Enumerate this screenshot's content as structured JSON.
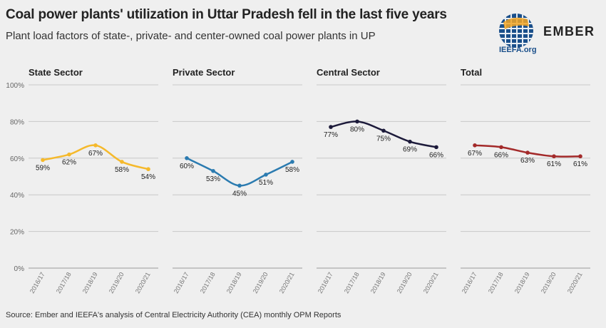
{
  "header": {
    "title": "Coal power plants' utilization in Uttar Pradesh fell in the last five years",
    "subtitle": "Plant load factors of state-, private- and center-owned coal power plants in UP"
  },
  "logos": {
    "ieefa": "IEEFA.org",
    "ember": "EMBER"
  },
  "footer": {
    "source": "Source: Ember and IEEFA's analysis of Central Electricity Authority (CEA) monthly OPM Reports"
  },
  "chart_data": {
    "type": "line",
    "categories": [
      "2016/17",
      "2017/18",
      "2018/19",
      "2019/20",
      "2020/21"
    ],
    "ylim": [
      0,
      100
    ],
    "yticks": [
      "0%",
      "20%",
      "40%",
      "60%",
      "80%",
      "100%"
    ],
    "grid": true,
    "panels": [
      {
        "title": "State Sector",
        "color": "#f5b92b",
        "values": [
          59,
          62,
          67,
          58,
          54
        ],
        "labels": [
          "59%",
          "62%",
          "67%",
          "58%",
          "54%"
        ]
      },
      {
        "title": "Private Sector",
        "color": "#2b7bb0",
        "values": [
          60,
          53,
          45,
          51,
          58
        ],
        "labels": [
          "60%",
          "53%",
          "45%",
          "51%",
          "58%"
        ]
      },
      {
        "title": "Central Sector",
        "color": "#1c1a3a",
        "values": [
          77,
          80,
          75,
          69,
          66
        ],
        "labels": [
          "77%",
          "80%",
          "75%",
          "69%",
          "66%"
        ]
      },
      {
        "title": "Total",
        "color": "#a32a2a",
        "values": [
          67,
          66,
          63,
          61,
          61
        ],
        "labels": [
          "67%",
          "66%",
          "63%",
          "61%",
          "61%"
        ]
      }
    ]
  }
}
